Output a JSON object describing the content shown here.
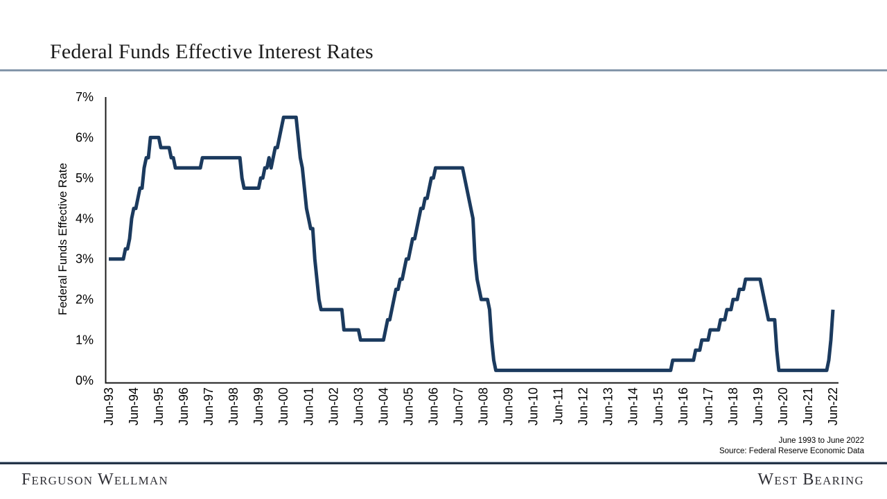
{
  "page": {
    "title": "Federal Funds Effective Interest Rates"
  },
  "source": {
    "line1": "June 1993 to June 2022",
    "line2": "Source: Federal Reserve Economic Data"
  },
  "footer": {
    "left_brand": "Ferguson Wellman",
    "right_brand": "West Bearing"
  },
  "colors": {
    "line": "#1b3a5e",
    "axis": "#1a1a1a",
    "title_rule": "#8496aa",
    "footer_rule": "#243447",
    "label_text": "#000000"
  },
  "chart_data": {
    "type": "line",
    "title": "Federal Funds Effective Interest Rates",
    "xlabel": "",
    "ylabel": "Federal Funds Effective Rate",
    "ylim": [
      0,
      7
    ],
    "grid": false,
    "legend": false,
    "y_tick_labels": [
      "0%",
      "1%",
      "2%",
      "3%",
      "4%",
      "5%",
      "6%",
      "7%"
    ],
    "x_tick_labels": [
      "Jun-93",
      "Jun-94",
      "Jun-95",
      "Jun-96",
      "Jun-97",
      "Jun-98",
      "Jun-99",
      "Jun-00",
      "Jun-01",
      "Jun-02",
      "Jun-03",
      "Jun-04",
      "Jun-05",
      "Jun-06",
      "Jun-07",
      "Jun-08",
      "Jun-09",
      "Jun-10",
      "Jun-11",
      "Jun-12",
      "Jun-13",
      "Jun-14",
      "Jun-15",
      "Jun-16",
      "Jun-17",
      "Jun-18",
      "Jun-19",
      "Jun-20",
      "Jun-21",
      "Jun-22"
    ],
    "x_tick_every_n_points": 12,
    "series": [
      {
        "name": "Federal Funds Effective Rate",
        "start": "Jun-1993",
        "frequency": "monthly",
        "values": [
          3,
          3,
          3,
          3,
          3,
          3,
          3,
          3,
          3.25,
          3.25,
          3.5,
          4,
          4.25,
          4.25,
          4.5,
          4.75,
          4.75,
          5.25,
          5.5,
          5.5,
          6,
          6,
          6,
          6,
          6,
          5.75,
          5.75,
          5.75,
          5.75,
          5.75,
          5.5,
          5.5,
          5.25,
          5.25,
          5.25,
          5.25,
          5.25,
          5.25,
          5.25,
          5.25,
          5.25,
          5.25,
          5.25,
          5.25,
          5.25,
          5.5,
          5.5,
          5.5,
          5.5,
          5.5,
          5.5,
          5.5,
          5.5,
          5.5,
          5.5,
          5.5,
          5.5,
          5.5,
          5.5,
          5.5,
          5.5,
          5.5,
          5.5,
          5.5,
          5,
          4.75,
          4.75,
          4.75,
          4.75,
          4.75,
          4.75,
          4.75,
          4.75,
          5,
          5,
          5.25,
          5.25,
          5.5,
          5.25,
          5.5,
          5.75,
          5.75,
          6,
          6.25,
          6.5,
          6.5,
          6.5,
          6.5,
          6.5,
          6.5,
          6.5,
          6,
          5.5,
          5.25,
          4.75,
          4.25,
          4,
          3.75,
          3.75,
          3,
          2.5,
          2,
          1.75,
          1.75,
          1.75,
          1.75,
          1.75,
          1.75,
          1.75,
          1.75,
          1.75,
          1.75,
          1.75,
          1.25,
          1.25,
          1.25,
          1.25,
          1.25,
          1.25,
          1.25,
          1.25,
          1,
          1,
          1,
          1,
          1,
          1,
          1,
          1,
          1,
          1,
          1,
          1,
          1.25,
          1.5,
          1.5,
          1.75,
          2,
          2.25,
          2.25,
          2.5,
          2.5,
          2.75,
          3,
          3,
          3.25,
          3.5,
          3.5,
          3.75,
          4,
          4.25,
          4.25,
          4.5,
          4.5,
          4.75,
          5,
          5,
          5.25,
          5.25,
          5.25,
          5.25,
          5.25,
          5.25,
          5.25,
          5.25,
          5.25,
          5.25,
          5.25,
          5.25,
          5.25,
          5.25,
          5,
          4.75,
          4.5,
          4.25,
          4,
          3,
          2.5,
          2.25,
          2,
          2,
          2,
          2,
          1.75,
          1,
          0.5,
          0.25,
          0.25,
          0.25,
          0.25,
          0.25,
          0.25,
          0.25,
          0.25,
          0.25,
          0.25,
          0.25,
          0.25,
          0.25,
          0.25,
          0.25,
          0.25,
          0.25,
          0.25,
          0.25,
          0.25,
          0.25,
          0.25,
          0.25,
          0.25,
          0.25,
          0.25,
          0.25,
          0.25,
          0.25,
          0.25,
          0.25,
          0.25,
          0.25,
          0.25,
          0.25,
          0.25,
          0.25,
          0.25,
          0.25,
          0.25,
          0.25,
          0.25,
          0.25,
          0.25,
          0.25,
          0.25,
          0.25,
          0.25,
          0.25,
          0.25,
          0.25,
          0.25,
          0.25,
          0.25,
          0.25,
          0.25,
          0.25,
          0.25,
          0.25,
          0.25,
          0.25,
          0.25,
          0.25,
          0.25,
          0.25,
          0.25,
          0.25,
          0.25,
          0.25,
          0.25,
          0.25,
          0.25,
          0.25,
          0.25,
          0.25,
          0.25,
          0.25,
          0.25,
          0.25,
          0.25,
          0.25,
          0.25,
          0.25,
          0.25,
          0.25,
          0.5,
          0.5,
          0.5,
          0.5,
          0.5,
          0.5,
          0.5,
          0.5,
          0.5,
          0.5,
          0.5,
          0.75,
          0.75,
          0.75,
          1,
          1,
          1,
          1,
          1.25,
          1.25,
          1.25,
          1.25,
          1.25,
          1.5,
          1.5,
          1.5,
          1.75,
          1.75,
          1.75,
          2,
          2,
          2,
          2.25,
          2.25,
          2.25,
          2.5,
          2.5,
          2.5,
          2.5,
          2.5,
          2.5,
          2.5,
          2.5,
          2.25,
          2,
          1.75,
          1.5,
          1.5,
          1.5,
          1.5,
          0.75,
          0.25,
          0.25,
          0.25,
          0.25,
          0.25,
          0.25,
          0.25,
          0.25,
          0.25,
          0.25,
          0.25,
          0.25,
          0.25,
          0.25,
          0.25,
          0.25,
          0.25,
          0.25,
          0.25,
          0.25,
          0.25,
          0.25,
          0.25,
          0.25,
          0.5,
          1,
          1.75
        ]
      }
    ],
    "annotations": [
      "June 1993 to June 2022",
      "Source: Federal Reserve Economic Data"
    ]
  }
}
